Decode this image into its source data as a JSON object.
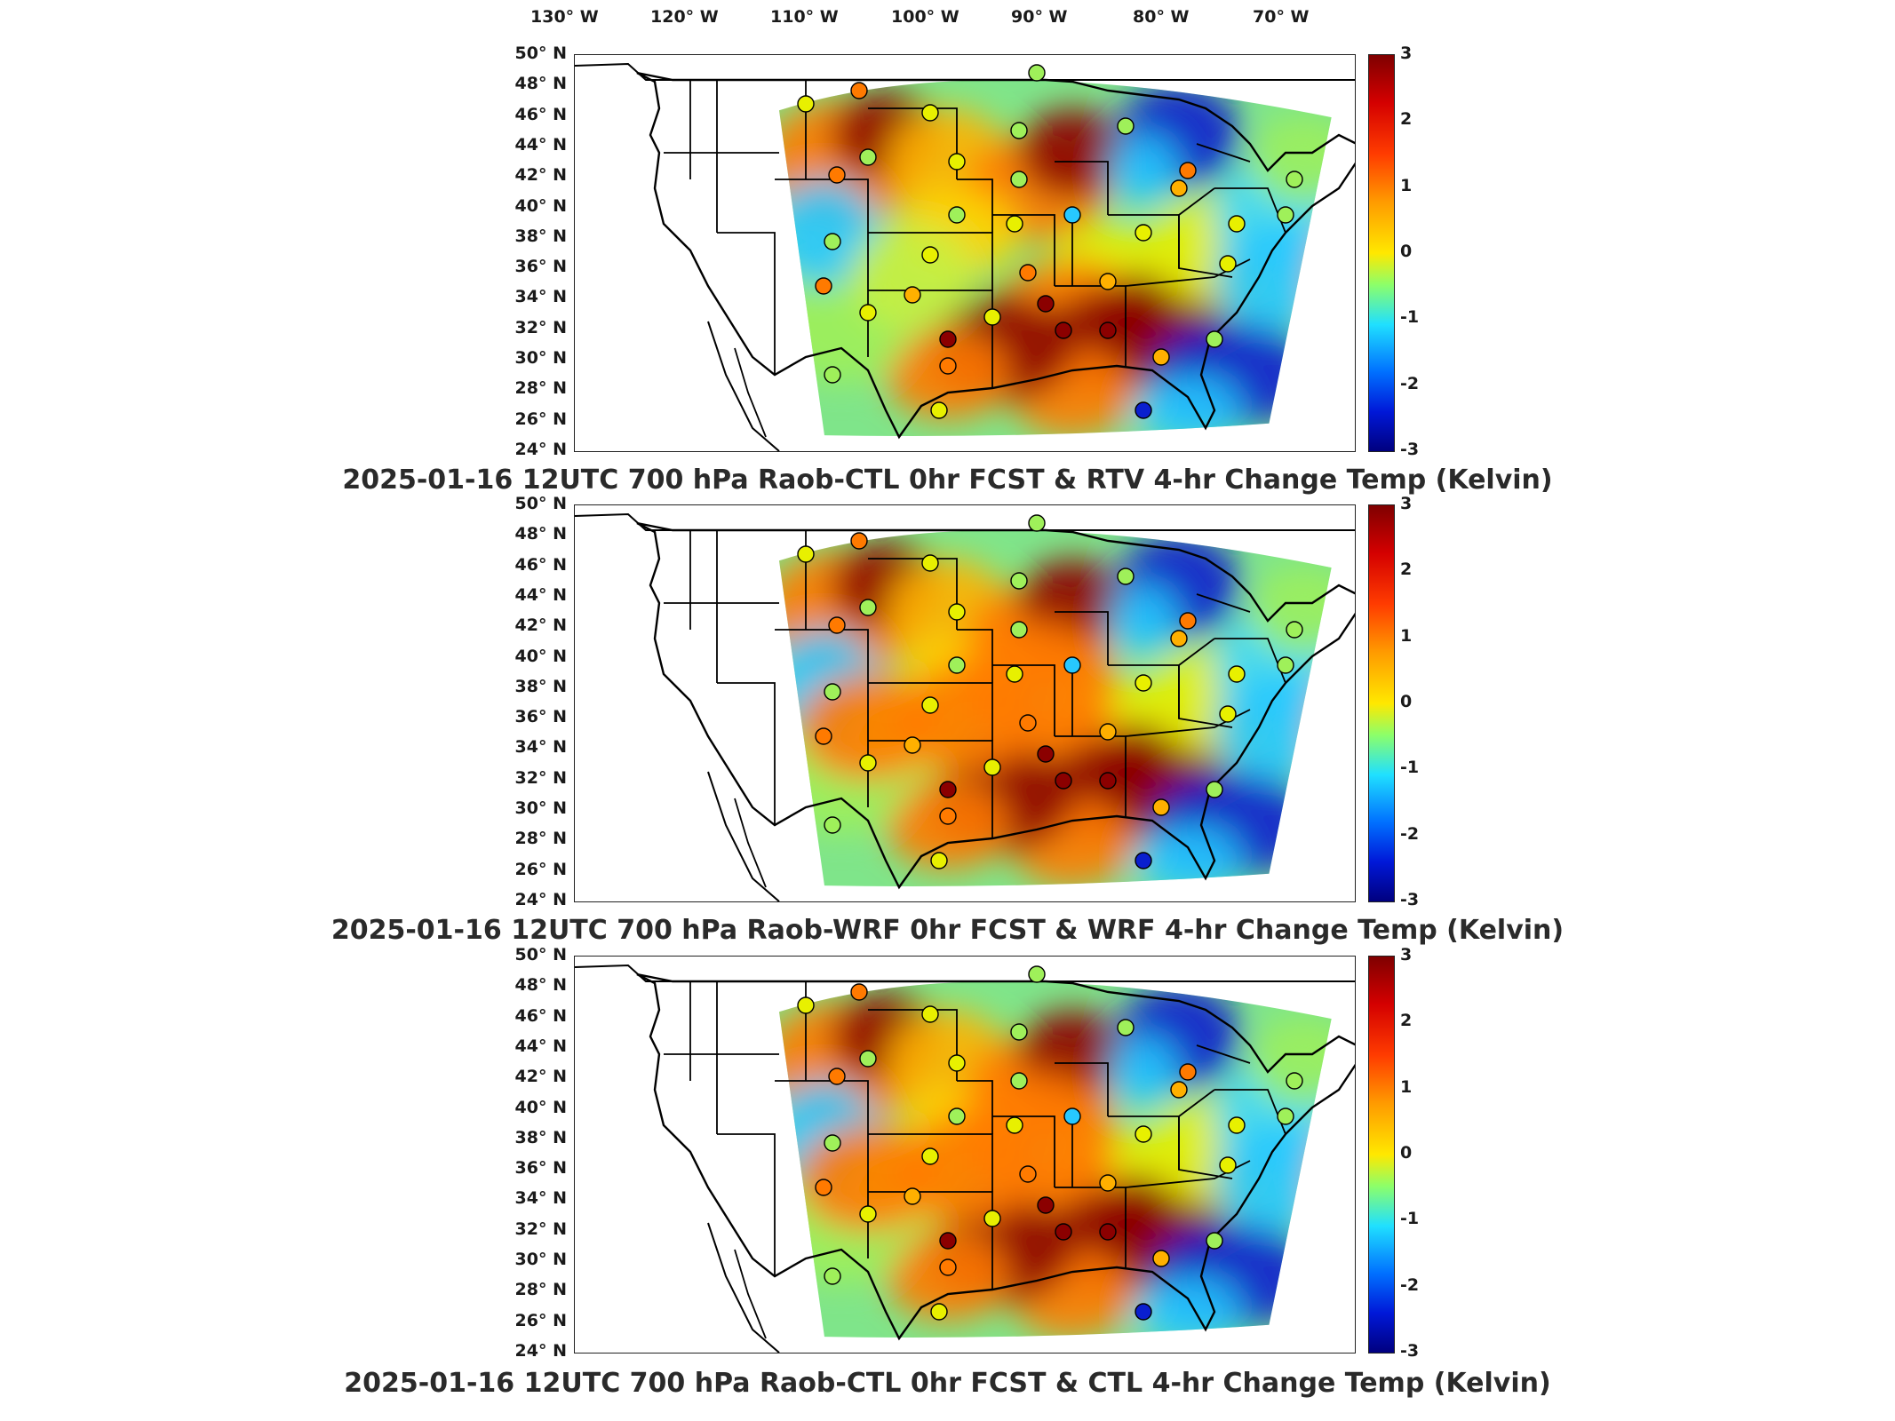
{
  "lon_labels": [
    "130° W",
    "120° W",
    "110° W",
    "100° W",
    "90° W",
    "80° W",
    "70° W"
  ],
  "lat_labels": [
    "50° N",
    "48° N",
    "46° N",
    "44° N",
    "42° N",
    "40° N",
    "38° N",
    "36° N",
    "34° N",
    "32° N",
    "30° N",
    "28° N",
    "26° N",
    "24° N"
  ],
  "colorbar_ticks": [
    "3",
    "2",
    "1",
    "0",
    "-1",
    "-2",
    "-3"
  ],
  "colorbar_range": [
    -3,
    3
  ],
  "colormap": "jet",
  "panels": [
    {
      "title": "2025-01-16 12UTC 700 hPa Raob-CTL 0hr FCST & RTV 4-hr Change Temp (Kelvin)"
    },
    {
      "title": "2025-01-16 12UTC 700 hPa Raob-WRF 0hr FCST & WRF 4-hr Change Temp (Kelvin)"
    },
    {
      "title": "2025-01-16 12UTC 700 hPa Raob-CTL 0hr FCST & CTL 4-hr Change Temp (Kelvin)"
    }
  ],
  "colors": {
    "hot": "#8b0000",
    "warm": "#ff7a00",
    "neutral": "#e8f000",
    "cool": "#27c8ff",
    "cold": "#0a1fcf"
  }
}
